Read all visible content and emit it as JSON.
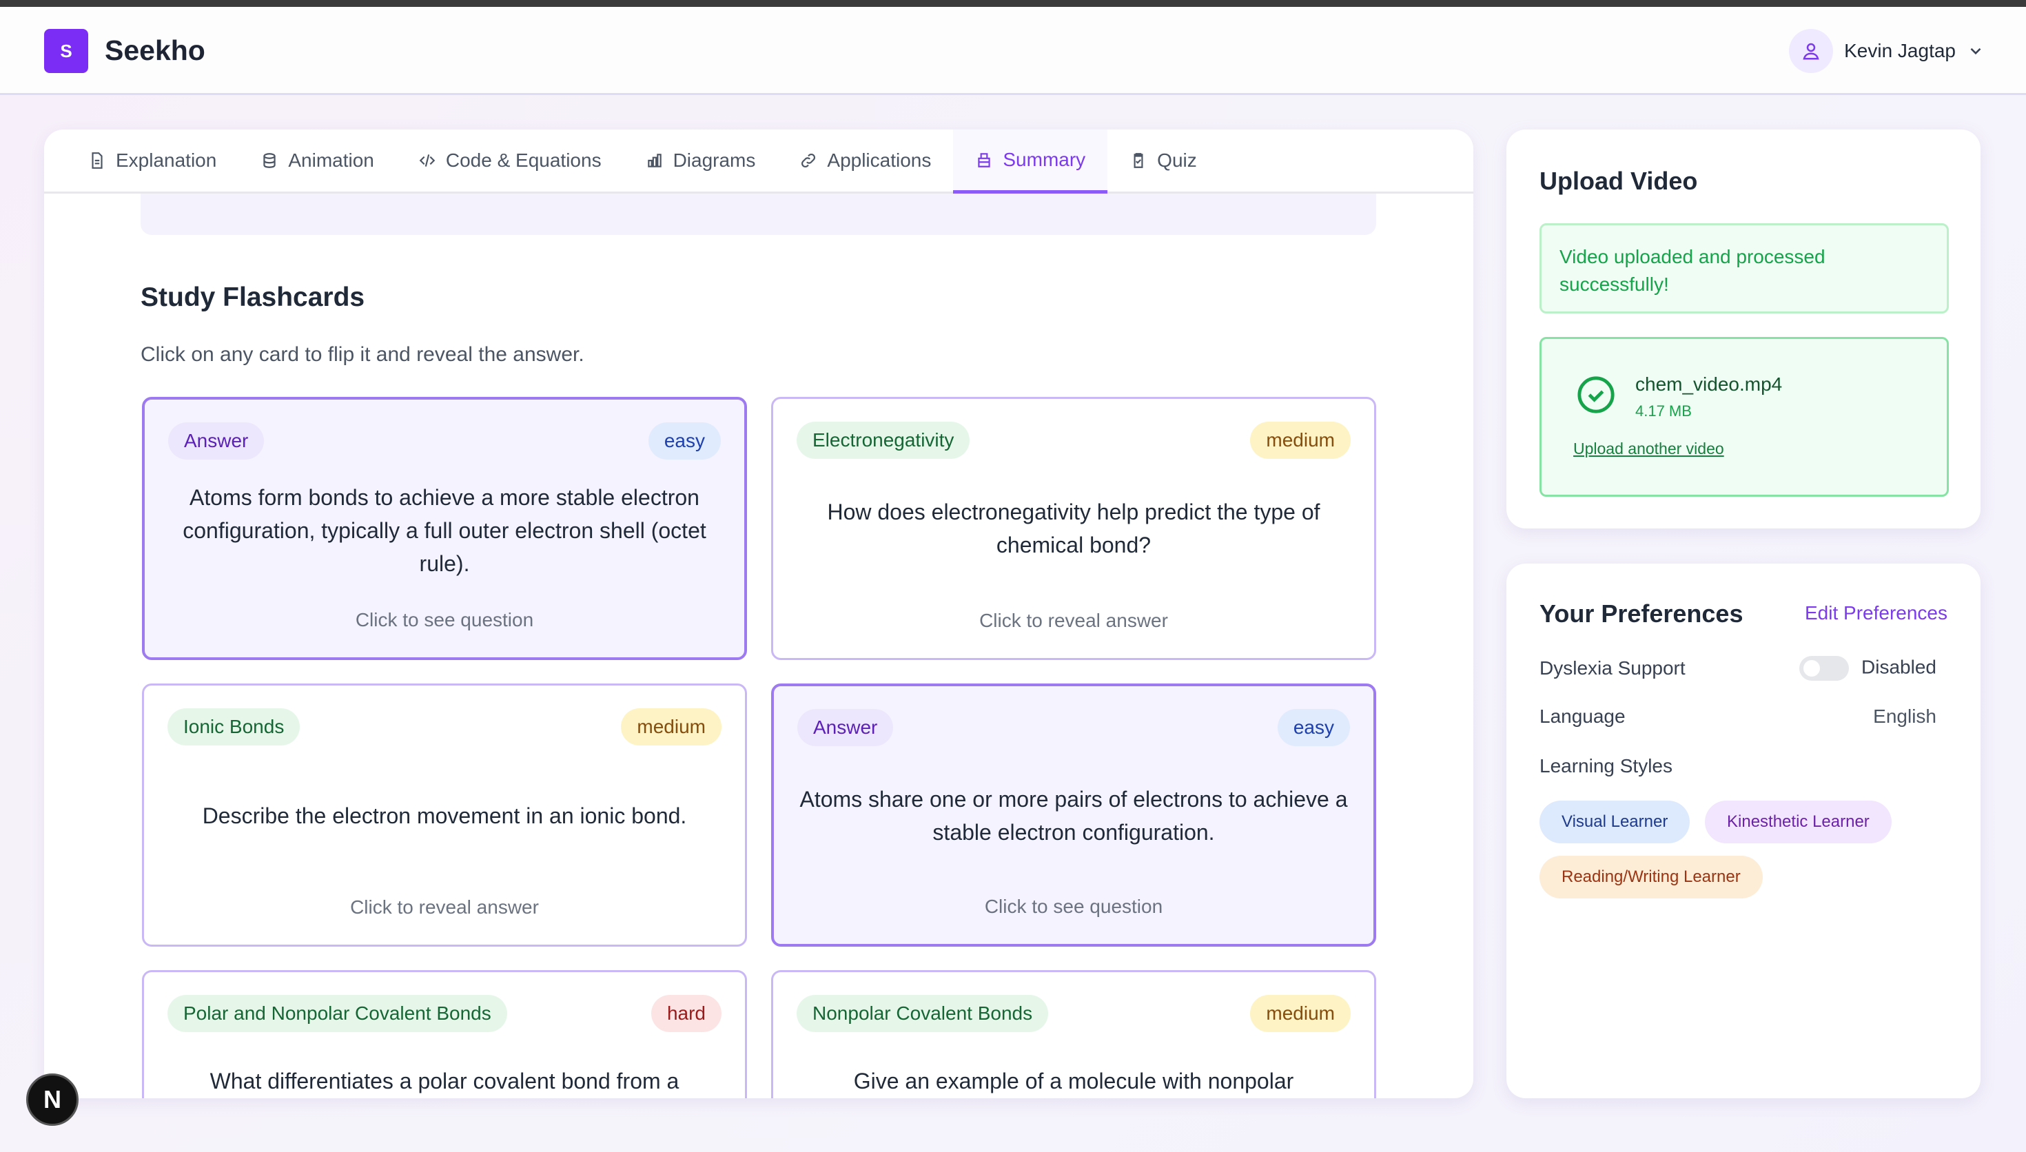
{
  "header": {
    "logo_letter": "S",
    "brand": "Seekho",
    "user_name": "Kevin Jagtap"
  },
  "tabs": [
    {
      "label": "Explanation",
      "icon": "document-icon"
    },
    {
      "label": "Animation",
      "icon": "database-icon"
    },
    {
      "label": "Code & Equations",
      "icon": "code-icon"
    },
    {
      "label": "Diagrams",
      "icon": "bar-chart-icon"
    },
    {
      "label": "Applications",
      "icon": "link-icon"
    },
    {
      "label": "Summary",
      "icon": "book-icon",
      "active": true
    },
    {
      "label": "Quiz",
      "icon": "clipboard-check-icon"
    }
  ],
  "flashcards": {
    "title": "Study Flashcards",
    "subtitle": "Click on any card to flip it and reveal the answer.",
    "cards": [
      {
        "tag": "Answer",
        "difficulty": "easy",
        "text": "Atoms form bonds to achieve a more stable electron configuration, typically a full outer electron shell (octet rule).",
        "footer": "Click to see question",
        "flipped": true
      },
      {
        "tag": "Electronegativity",
        "difficulty": "medium",
        "text": "How does electronegativity help predict the type of chemical bond?",
        "footer": "Click to reveal answer",
        "flipped": false
      },
      {
        "tag": "Ionic Bonds",
        "difficulty": "medium",
        "text": "Describe the electron movement in an ionic bond.",
        "footer": "Click to reveal answer",
        "flipped": false
      },
      {
        "tag": "Answer",
        "difficulty": "easy",
        "text": "Atoms share one or more pairs of electrons to achieve a stable electron configuration.",
        "footer": "Click to see question",
        "flipped": true
      },
      {
        "tag": "Polar and Nonpolar Covalent Bonds",
        "difficulty": "hard",
        "text": "What differentiates a polar covalent bond from a",
        "footer": "",
        "flipped": false
      },
      {
        "tag": "Nonpolar Covalent Bonds",
        "difficulty": "medium",
        "text": "Give an example of a molecule with nonpolar",
        "footer": "",
        "flipped": false
      }
    ]
  },
  "upload": {
    "title": "Upload Video",
    "success": "Video uploaded and processed successfully!",
    "file_name": "chem_video.mp4",
    "file_size": "4.17 MB",
    "link": "Upload another video"
  },
  "preferences": {
    "title": "Your Preferences",
    "edit": "Edit Preferences",
    "dyslexia_label": "Dyslexia Support",
    "dyslexia_value": "Disabled",
    "dyslexia_enabled": false,
    "language_label": "Language",
    "language_value": "English",
    "styles_label": "Learning Styles",
    "styles": [
      "Visual Learner",
      "Kinesthetic Learner",
      "Reading/Writing Learner"
    ]
  },
  "dev_badge": "N",
  "colors": {
    "accent": "#7c3aed",
    "success": "#16a34a"
  }
}
